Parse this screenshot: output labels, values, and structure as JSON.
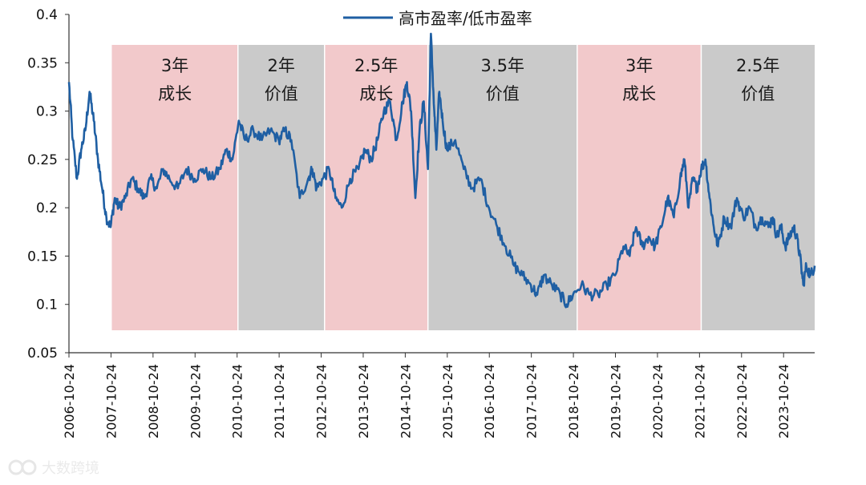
{
  "chart_data": {
    "type": "line",
    "title": "",
    "xlabel": "",
    "ylabel": "",
    "ylim": [
      0.05,
      0.4
    ],
    "y_ticks": [
      0.05,
      0.1,
      0.15,
      0.2,
      0.25,
      0.3,
      0.35,
      0.4
    ],
    "y_tick_labels": [
      "0.05",
      "0.1",
      "0.15",
      "0.2",
      "0.25",
      "0.3",
      "0.35",
      "0.4"
    ],
    "x_range": [
      2006.81,
      2024.55
    ],
    "x_ticks": [
      2006.81,
      2007.81,
      2008.81,
      2009.81,
      2010.81,
      2011.81,
      2012.81,
      2013.81,
      2014.81,
      2015.81,
      2016.81,
      2017.81,
      2018.81,
      2019.81,
      2020.81,
      2021.81,
      2022.81,
      2023.81
    ],
    "x_tick_labels": [
      "2006-10-24",
      "2007-10-24",
      "2008-10-24",
      "2009-10-24",
      "2010-10-24",
      "2011-10-24",
      "2012-10-24",
      "2013-10-24",
      "2014-10-24",
      "2015-10-24",
      "2016-10-24",
      "2017-10-24",
      "2018-10-24",
      "2019-10-24",
      "2020-10-24",
      "2021-10-24",
      "2022-10-24",
      "2023-10-24"
    ],
    "grid": false,
    "legend": {
      "position": "top-center",
      "entries": [
        "高市盈率/低市盈率"
      ]
    },
    "series": [
      {
        "name": "高市盈率/低市盈率",
        "color": "#1f5fa3",
        "x": [
          2006.81,
          2006.9,
          2007.0,
          2007.1,
          2007.2,
          2007.3,
          2007.4,
          2007.5,
          2007.6,
          2007.7,
          2007.8,
          2007.9,
          2008.0,
          2008.15,
          2008.3,
          2008.45,
          2008.6,
          2008.75,
          2008.9,
          2009.05,
          2009.2,
          2009.4,
          2009.6,
          2009.8,
          2010.0,
          2010.2,
          2010.4,
          2010.55,
          2010.7,
          2010.85,
          2011.0,
          2011.2,
          2011.4,
          2011.6,
          2011.8,
          2011.95,
          2012.1,
          2012.3,
          2012.5,
          2012.6,
          2012.7,
          2012.85,
          2013.0,
          2013.15,
          2013.3,
          2013.5,
          2013.7,
          2013.85,
          2014.0,
          2014.15,
          2014.3,
          2014.45,
          2014.6,
          2014.75,
          2014.85,
          2014.95,
          2015.05,
          2015.15,
          2015.25,
          2015.35,
          2015.42,
          2015.5,
          2015.55,
          2015.62,
          2015.7,
          2015.8,
          2016.0,
          2016.2,
          2016.4,
          2016.6,
          2016.8,
          2017.0,
          2017.2,
          2017.4,
          2017.6,
          2017.8,
          2017.95,
          2018.1,
          2018.3,
          2018.5,
          2018.65,
          2018.8,
          2019.0,
          2019.2,
          2019.4,
          2019.6,
          2019.8,
          2020.0,
          2020.15,
          2020.3,
          2020.45,
          2020.6,
          2020.75,
          2020.9,
          2021.05,
          2021.2,
          2021.35,
          2021.45,
          2021.55,
          2021.65,
          2021.75,
          2021.85,
          2021.95,
          2022.05,
          2022.15,
          2022.25,
          2022.4,
          2022.55,
          2022.7,
          2022.85,
          2023.0,
          2023.15,
          2023.3,
          2023.45,
          2023.55,
          2023.65,
          2023.75,
          2023.85,
          2023.95,
          2024.05,
          2024.12,
          2024.2,
          2024.28,
          2024.35,
          2024.45,
          2024.55
        ],
        "values": [
          0.33,
          0.27,
          0.23,
          0.26,
          0.28,
          0.32,
          0.29,
          0.25,
          0.22,
          0.19,
          0.18,
          0.21,
          0.2,
          0.21,
          0.23,
          0.22,
          0.21,
          0.23,
          0.22,
          0.24,
          0.23,
          0.22,
          0.24,
          0.23,
          0.24,
          0.23,
          0.24,
          0.26,
          0.25,
          0.29,
          0.27,
          0.28,
          0.27,
          0.28,
          0.27,
          0.28,
          0.27,
          0.21,
          0.23,
          0.24,
          0.22,
          0.23,
          0.24,
          0.21,
          0.2,
          0.23,
          0.24,
          0.26,
          0.25,
          0.27,
          0.3,
          0.31,
          0.27,
          0.31,
          0.33,
          0.3,
          0.21,
          0.28,
          0.31,
          0.24,
          0.38,
          0.3,
          0.26,
          0.32,
          0.29,
          0.26,
          0.27,
          0.24,
          0.22,
          0.23,
          0.2,
          0.18,
          0.16,
          0.14,
          0.13,
          0.12,
          0.11,
          0.13,
          0.12,
          0.11,
          0.1,
          0.11,
          0.12,
          0.11,
          0.11,
          0.12,
          0.13,
          0.16,
          0.15,
          0.18,
          0.16,
          0.17,
          0.16,
          0.18,
          0.21,
          0.19,
          0.23,
          0.25,
          0.2,
          0.23,
          0.22,
          0.24,
          0.25,
          0.21,
          0.18,
          0.16,
          0.19,
          0.18,
          0.21,
          0.19,
          0.2,
          0.18,
          0.19,
          0.18,
          0.19,
          0.17,
          0.18,
          0.16,
          0.17,
          0.18,
          0.17,
          0.15,
          0.12,
          0.14,
          0.13,
          0.14
        ]
      }
    ],
    "regions": [
      {
        "x0": 2007.83,
        "x1": 2010.83,
        "color": "#f2c9cb",
        "line1": "3年",
        "line2": "成长"
      },
      {
        "x0": 2010.83,
        "x1": 2012.89,
        "color": "#cacaca",
        "line1": "2年",
        "line2": "价值"
      },
      {
        "x0": 2012.89,
        "x1": 2015.35,
        "color": "#f2c9cb",
        "line1": "2.5年",
        "line2": "成长"
      },
      {
        "x0": 2015.35,
        "x1": 2018.9,
        "color": "#cacaca",
        "line1": "3.5年",
        "line2": "价值"
      },
      {
        "x0": 2018.9,
        "x1": 2021.85,
        "color": "#f2c9cb",
        "line1": "3年",
        "line2": "成长"
      },
      {
        "x0": 2021.85,
        "x1": 2024.55,
        "color": "#cacaca",
        "line1": "2.5年",
        "line2": "价值"
      }
    ]
  },
  "watermark": {
    "text": "大数跨境",
    "icon": "brand-logo-icon"
  }
}
